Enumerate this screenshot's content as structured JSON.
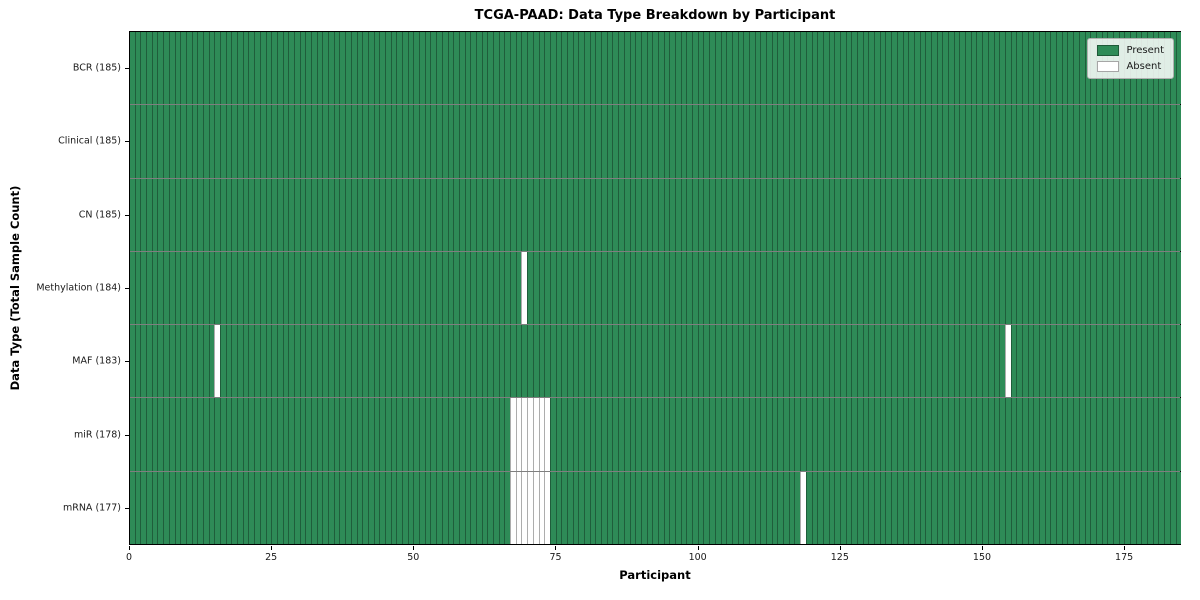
{
  "figure": {
    "title": "TCGA-PAAD: Data Type Breakdown by Participant",
    "xlabel": "Participant",
    "ylabel": "Data Type (Total Sample Count)"
  },
  "chart_data": {
    "type": "heatmap",
    "subtype": "binary-presence-matrix",
    "title": "TCGA-PAAD: Data Type Breakdown by Participant",
    "xlabel": "Participant",
    "ylabel": "Data Type (Total Sample Count)",
    "n_participants": 185,
    "xlim": [
      0,
      185
    ],
    "x_ticks": [
      0,
      25,
      50,
      75,
      100,
      125,
      150,
      175
    ],
    "grid": false,
    "colors": {
      "present": "#2e8b57",
      "absent": "#ffffff",
      "cell_edge": "rgba(0,0,0,0.32)",
      "row_divider": "rgba(0,0,0,0.5)",
      "spine": "#000000"
    },
    "legend": {
      "position": "upper right",
      "entries": [
        {
          "label": "Present",
          "color": "#2e8b57"
        },
        {
          "label": "Absent",
          "color": "#ffffff"
        }
      ]
    },
    "rows": [
      {
        "label": "BCR",
        "total": 185,
        "tick_label": "BCR (185)",
        "absent_participants": []
      },
      {
        "label": "Clinical",
        "total": 185,
        "tick_label": "Clinical (185)",
        "absent_participants": []
      },
      {
        "label": "CN",
        "total": 185,
        "tick_label": "CN (185)",
        "absent_participants": []
      },
      {
        "label": "Methylation",
        "total": 184,
        "tick_label": "Methylation (184)",
        "absent_participants": [
          69
        ]
      },
      {
        "label": "MAF",
        "total": 183,
        "tick_label": "MAF (183)",
        "absent_participants": [
          15,
          154
        ]
      },
      {
        "label": "miR",
        "total": 178,
        "tick_label": "miR (178)",
        "absent_participants": [
          67,
          68,
          69,
          70,
          71,
          72,
          73
        ]
      },
      {
        "label": "mRNA",
        "total": 177,
        "tick_label": "mRNA (177)",
        "absent_participants": [
          67,
          68,
          69,
          70,
          71,
          72,
          73,
          118
        ]
      }
    ]
  }
}
